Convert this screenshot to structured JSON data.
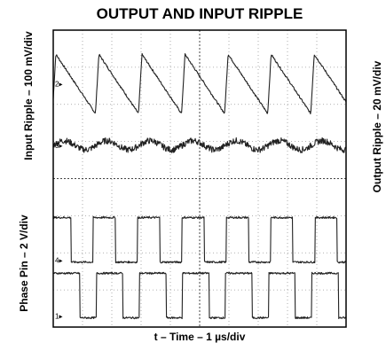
{
  "chart_data": {
    "type": "line",
    "title": "OUTPUT AND INPUT RIPPLE",
    "xlabel": "t – Time – 1 µs/div",
    "ylabel_left_top": "Input Ripple – 100 mV/div",
    "ylabel_left_bottom": "Phase Pin – 2 V/div",
    "ylabel_right": "Output Ripple – 20 mV/div",
    "grid": true,
    "x_divisions": 10,
    "y_divisions": 8,
    "channel_markers": [
      "2",
      "3",
      "4",
      "1"
    ],
    "series": [
      {
        "name": "2",
        "kind": "sawtooth",
        "y_low": 5.75,
        "y_high": 7.35,
        "periods": 6.8,
        "phase": 0.02
      },
      {
        "name": "3",
        "kind": "noise",
        "y_center": 4.9,
        "amplitude": 0.12,
        "periods": 6.8
      },
      {
        "name": "4",
        "kind": "square",
        "y_low": 1.75,
        "y_high": 2.95,
        "periods": 6.6,
        "duty": 0.5,
        "phase": 0.1
      },
      {
        "name": "1",
        "kind": "square",
        "y_low": 0.25,
        "y_high": 1.45,
        "periods": 6.8,
        "duty": 0.62,
        "phase": 0.0
      }
    ]
  }
}
